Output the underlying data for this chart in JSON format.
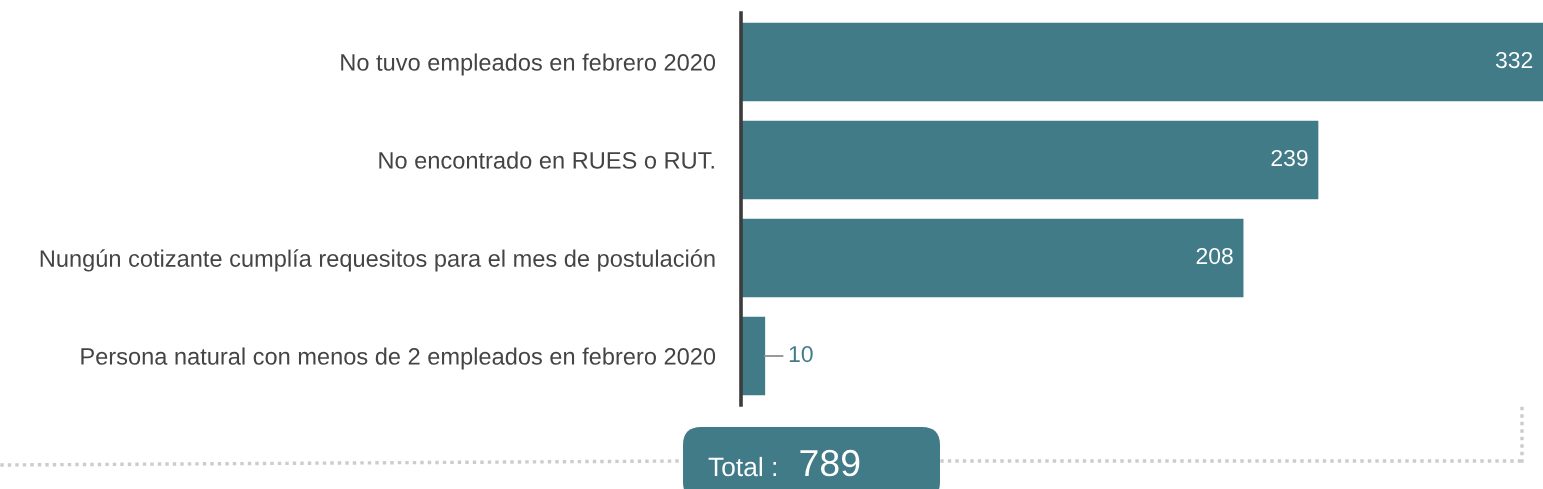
{
  "chart_data": {
    "type": "bar",
    "orientation": "horizontal",
    "categories": [
      "No tuvo empleados en febrero 2020",
      "No encontrado en RUES o RUT.",
      "Nungún cotizante cumplía requesitos para el mes de postulación",
      "Persona natural con menos de 2 empleados en febrero 2020"
    ],
    "values": [
      332,
      239,
      208,
      10
    ],
    "color": "#417b88",
    "data_labels": true,
    "tick_labels": "y",
    "annotations": [
      "Total :",
      "789"
    ]
  }
}
